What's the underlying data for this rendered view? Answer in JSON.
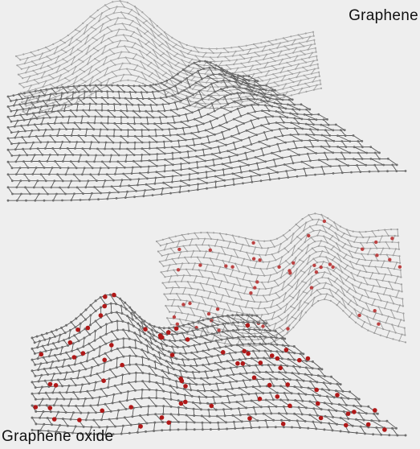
{
  "labels": {
    "top": "Graphene",
    "bottom": "Graphene oxide"
  },
  "colors": {
    "background": "#eeeeee",
    "carbon_bond": "#555555",
    "carbon_atom": "#6e6e6e",
    "oxygen_atom": "#b01818"
  },
  "panels": [
    {
      "material": "graphene",
      "oxygen_atoms": false
    },
    {
      "material": "graphene-oxide",
      "oxygen_atoms": true
    }
  ]
}
